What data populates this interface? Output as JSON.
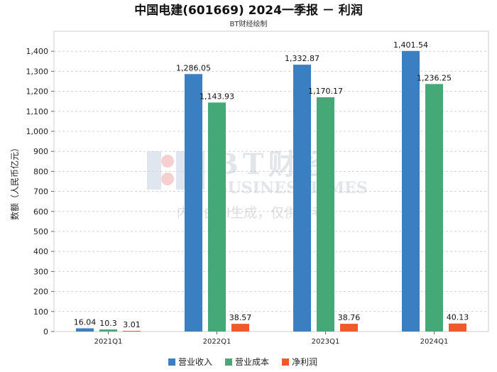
{
  "chart_data": {
    "type": "bar",
    "title": "中国电建(601669) 2024一季报 － 利润",
    "subtitle": "BT财经绘制",
    "ylabel": "数额（人民币亿元）",
    "xlabel": "",
    "categories": [
      "2021Q1",
      "2022Q1",
      "2023Q1",
      "2024Q1"
    ],
    "series": [
      {
        "name": "营业收入",
        "color": "#3a7fc1",
        "values": [
          16.04,
          1286.05,
          1332.87,
          1401.54
        ],
        "labels": [
          "16.04",
          "1,286.05",
          "1,332.87",
          "1,401.54"
        ]
      },
      {
        "name": "营业成本",
        "color": "#45a877",
        "values": [
          10.3,
          1143.93,
          1170.17,
          1236.25
        ],
        "labels": [
          "10.3",
          "1,143.93",
          "1,170.17",
          "1,236.25"
        ]
      },
      {
        "name": "净利润",
        "color": "#ee5a2a",
        "values": [
          3.01,
          38.57,
          38.76,
          40.13
        ],
        "labels": [
          "3.01",
          "38.57",
          "38.76",
          "40.13"
        ]
      }
    ],
    "ylim": [
      0,
      1400
    ],
    "yticks": [
      0,
      100,
      200,
      300,
      400,
      500,
      600,
      700,
      800,
      900,
      1000,
      1100,
      1200,
      1300,
      1400
    ],
    "ytick_labels": [
      "0",
      "100",
      "200",
      "300",
      "400",
      "500",
      "600",
      "700",
      "800",
      "900",
      "1,000",
      "1,100",
      "1,200",
      "1,300",
      "1,400"
    ],
    "grid": true,
    "legend_position": "bottom-center"
  },
  "watermark": {
    "brand": "BT财经",
    "brand_en": "BUSINESSTIMES",
    "disclaimer": "内容由AI生成，仅供参考"
  }
}
